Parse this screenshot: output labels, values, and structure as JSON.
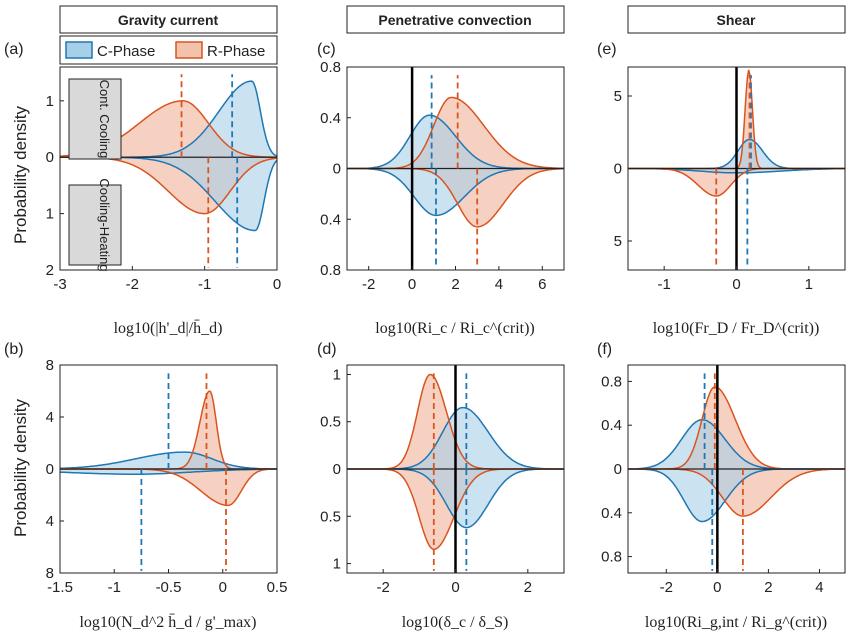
{
  "column_headers": [
    "Gravity current",
    "Penetrative convection",
    "Shear"
  ],
  "y_label": "Probability density",
  "legend": [
    {
      "label": "C-Phase",
      "color": "#1f77b4"
    },
    {
      "label": "R-Phase",
      "color": "#d9541e"
    }
  ],
  "colors": {
    "c_phase": "#1f77b4",
    "r_phase": "#d9541e",
    "c_fill": "#a8cfe8",
    "r_fill": "#f3c2ad",
    "overlap": "#c9b8b6"
  },
  "annotations": {
    "top": "Cont. Cooling",
    "bottom": "Cooling-Heating"
  },
  "chart_data": [
    {
      "type": "area",
      "id": "a",
      "panel_label": "(a)",
      "xlabel": "log10(|h'_d|/h̄_d)",
      "xlim": [
        -3,
        0
      ],
      "ylim": [
        -2,
        1.6
      ],
      "xticks": [
        -3,
        -2,
        -1,
        0
      ],
      "xtick_labels": [
        "-3",
        "-2",
        "-1",
        "0"
      ],
      "yticks": [
        -2,
        -1,
        0,
        1
      ],
      "ytick_labels": [
        "2",
        "1",
        "0",
        "1"
      ],
      "series": [
        {
          "phase": "C",
          "half": "top",
          "peak_x": -0.35,
          "peak": 1.35,
          "width_left": 0.45,
          "width_right": 0.12,
          "median": -0.62
        },
        {
          "phase": "R",
          "half": "top",
          "peak_x": -1.3,
          "peak": 1.0,
          "width_left": 0.6,
          "width_right": 0.35,
          "median": -1.32
        },
        {
          "phase": "C",
          "half": "bottom",
          "peak_x": -0.3,
          "peak": 1.3,
          "width_left": 0.55,
          "width_right": 0.12,
          "median": -0.55
        },
        {
          "phase": "R",
          "half": "bottom",
          "peak_x": -1.0,
          "peak": 1.0,
          "width_left": 0.5,
          "width_right": 0.35,
          "median": -0.95
        }
      ]
    },
    {
      "type": "area",
      "id": "b",
      "panel_label": "(b)",
      "xlabel": "log10(N_d^2 h̄_d / g'_max)",
      "xlim": [
        -1.5,
        0.5
      ],
      "ylim": [
        -8,
        8
      ],
      "xticks": [
        -1.5,
        -1,
        -0.5,
        0,
        0.5
      ],
      "xtick_labels": [
        "-1.5",
        "-1",
        "-0.5",
        "0",
        "0.5"
      ],
      "yticks": [
        -8,
        -4,
        0,
        4,
        8
      ],
      "ytick_labels": [
        "8",
        "4",
        "0",
        "4",
        "8"
      ],
      "series": [
        {
          "phase": "C",
          "half": "top",
          "peak_x": -0.35,
          "peak": 1.3,
          "width_left": 0.45,
          "width_right": 0.25,
          "median": -0.5
        },
        {
          "phase": "R",
          "half": "top",
          "peak_x": -0.12,
          "peak": 6.0,
          "width_left": 0.09,
          "width_right": 0.06,
          "median": -0.15
        },
        {
          "phase": "C",
          "half": "bottom",
          "peak_x": -0.8,
          "peak": 0.4,
          "width_left": 0.7,
          "width_right": 0.5,
          "median": -0.75
        },
        {
          "phase": "R",
          "half": "bottom",
          "peak_x": 0.05,
          "peak": 2.8,
          "width_left": 0.25,
          "width_right": 0.12,
          "median": 0.03
        }
      ]
    },
    {
      "type": "area",
      "id": "c",
      "panel_label": "(c)",
      "xlabel": "log10(Ri_c / Ri_c^(crit))",
      "xlim": [
        -3,
        7
      ],
      "ylim": [
        -0.8,
        0.8
      ],
      "xticks": [
        -2,
        0,
        2,
        4,
        6
      ],
      "xtick_labels": [
        "-2",
        "0",
        "2",
        "4",
        "6"
      ],
      "yticks": [
        -0.8,
        -0.4,
        0,
        0.4,
        0.8
      ],
      "ytick_labels": [
        "0.8",
        "0.4",
        "0",
        "0.4",
        "0.8"
      ],
      "series": [
        {
          "phase": "C",
          "half": "top",
          "peak_x": 0.8,
          "peak": 0.42,
          "width_left": 0.9,
          "width_right": 1.2,
          "median": 0.9
        },
        {
          "phase": "R",
          "half": "top",
          "peak_x": 1.8,
          "peak": 0.56,
          "width_left": 0.8,
          "width_right": 1.5,
          "median": 2.1
        },
        {
          "phase": "C",
          "half": "bottom",
          "peak_x": 1.1,
          "peak": 0.37,
          "width_left": 1.0,
          "width_right": 1.3,
          "median": 1.1
        },
        {
          "phase": "R",
          "half": "bottom",
          "peak_x": 3.0,
          "peak": 0.46,
          "width_left": 0.9,
          "width_right": 1.2,
          "median": 3.0
        }
      ],
      "vline": 0
    },
    {
      "type": "area",
      "id": "d",
      "panel_label": "(d)",
      "xlabel": "log10(δ_c / δ_S)",
      "xlim": [
        -3,
        3
      ],
      "ylim": [
        -1.1,
        1.1
      ],
      "xticks": [
        -2,
        0,
        2
      ],
      "xtick_labels": [
        "-2",
        "0",
        "2"
      ],
      "yticks": [
        -1,
        -0.5,
        0,
        0.5,
        1
      ],
      "ytick_labels": [
        "1",
        "0.5",
        "0",
        "0.5",
        "1"
      ],
      "series": [
        {
          "phase": "C",
          "half": "top",
          "peak_x": 0.2,
          "peak": 0.65,
          "width_left": 0.55,
          "width_right": 0.7,
          "median": 0.3
        },
        {
          "phase": "R",
          "half": "top",
          "peak_x": -0.7,
          "peak": 1.0,
          "width_left": 0.35,
          "width_right": 0.45,
          "median": -0.6
        },
        {
          "phase": "C",
          "half": "bottom",
          "peak_x": 0.3,
          "peak": 0.62,
          "width_left": 0.55,
          "width_right": 0.6,
          "median": 0.3
        },
        {
          "phase": "R",
          "half": "bottom",
          "peak_x": -0.6,
          "peak": 0.85,
          "width_left": 0.4,
          "width_right": 0.55,
          "median": -0.6
        }
      ],
      "vline": 0
    },
    {
      "type": "area",
      "id": "e",
      "panel_label": "(e)",
      "xlabel": "log10(Fr_D / Fr_D^(crit))",
      "xlim": [
        -1.5,
        1.5
      ],
      "ylim": [
        -7,
        7
      ],
      "xticks": [
        -1,
        0,
        1
      ],
      "xtick_labels": [
        "-1",
        "0",
        "1"
      ],
      "yticks": [
        -5,
        0,
        5
      ],
      "ytick_labels": [
        "5",
        "0",
        "5"
      ],
      "series": [
        {
          "phase": "C",
          "half": "top",
          "peak_x": 0.18,
          "peak": 2.0,
          "width_left": 0.16,
          "width_right": 0.18,
          "median": 0.2
        },
        {
          "phase": "R",
          "half": "top",
          "peak_x": 0.17,
          "peak": 6.8,
          "width_left": 0.05,
          "width_right": 0.05,
          "median": 0.18
        },
        {
          "phase": "C",
          "half": "bottom",
          "peak_x": 0.0,
          "peak": 0.3,
          "width_left": 0.5,
          "width_right": 0.6,
          "median": 0.15
        },
        {
          "phase": "R",
          "half": "bottom",
          "peak_x": -0.28,
          "peak": 1.9,
          "width_left": 0.25,
          "width_right": 0.2,
          "median": -0.28
        }
      ],
      "vline": 0
    },
    {
      "type": "area",
      "id": "f",
      "panel_label": "(f)",
      "xlabel": "log10(Ri_g,int / Ri_g^(crit))",
      "xlim": [
        -3.5,
        5
      ],
      "ylim": [
        -0.95,
        0.95
      ],
      "xticks": [
        -2,
        0,
        2,
        4
      ],
      "xtick_labels": [
        "-2",
        "0",
        "2",
        "4"
      ],
      "yticks": [
        -0.8,
        -0.4,
        0,
        0.4,
        0.8
      ],
      "ytick_labels": [
        "0.8",
        "0.4",
        "0",
        "0.4",
        "0.8"
      ],
      "series": [
        {
          "phase": "C",
          "half": "top",
          "peak_x": -0.6,
          "peak": 0.45,
          "width_left": 0.8,
          "width_right": 0.9,
          "median": -0.5
        },
        {
          "phase": "R",
          "half": "top",
          "peak_x": -0.1,
          "peak": 0.75,
          "width_left": 0.5,
          "width_right": 0.8,
          "median": -0.1
        },
        {
          "phase": "C",
          "half": "bottom",
          "peak_x": -0.6,
          "peak": 0.48,
          "width_left": 0.7,
          "width_right": 0.9,
          "median": -0.2
        },
        {
          "phase": "R",
          "half": "bottom",
          "peak_x": 1.0,
          "peak": 0.43,
          "width_left": 0.8,
          "width_right": 1.1,
          "median": 1.0
        }
      ],
      "vline": 0
    }
  ]
}
